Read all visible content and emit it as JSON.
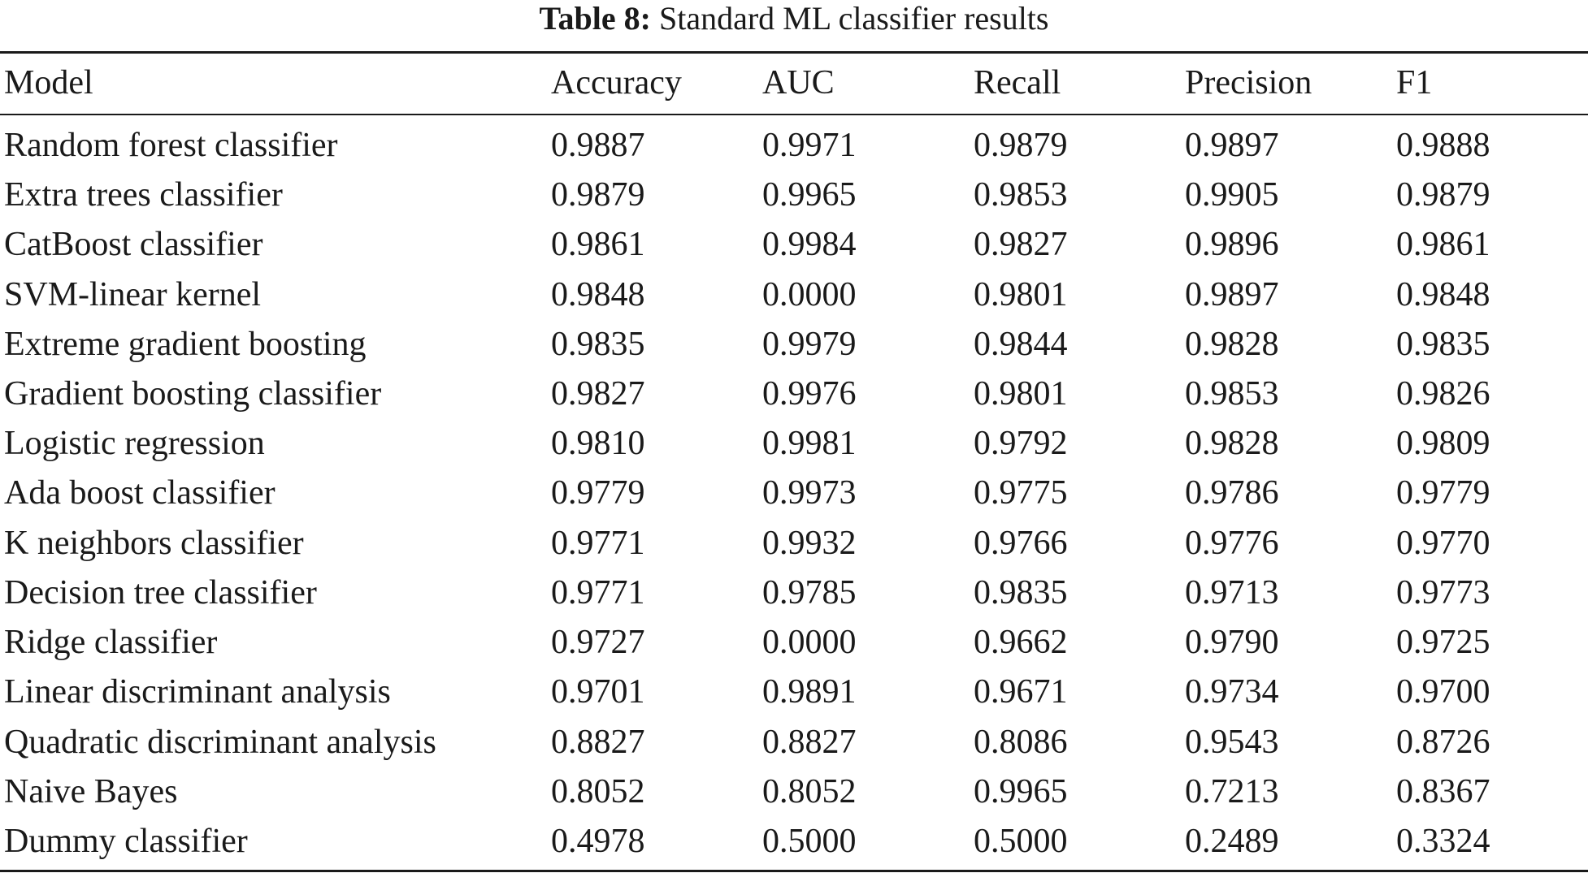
{
  "caption": {
    "label": "Table 8:",
    "title": "Standard ML classifier results"
  },
  "table": {
    "headers": [
      "Model",
      "Accuracy",
      "AUC",
      "Recall",
      "Precision",
      "F1"
    ],
    "rows": [
      [
        "Random forest classifier",
        "0.9887",
        "0.9971",
        "0.9879",
        "0.9897",
        "0.9888"
      ],
      [
        "Extra trees classifier",
        "0.9879",
        "0.9965",
        "0.9853",
        "0.9905",
        "0.9879"
      ],
      [
        "CatBoost classifier",
        "0.9861",
        "0.9984",
        "0.9827",
        "0.9896",
        "0.9861"
      ],
      [
        "SVM-linear kernel",
        "0.9848",
        "0.0000",
        "0.9801",
        "0.9897",
        "0.9848"
      ],
      [
        "Extreme gradient boosting",
        "0.9835",
        "0.9979",
        "0.9844",
        "0.9828",
        "0.9835"
      ],
      [
        "Gradient boosting classifier",
        "0.9827",
        "0.9976",
        "0.9801",
        "0.9853",
        "0.9826"
      ],
      [
        "Logistic regression",
        "0.9810",
        "0.9981",
        "0.9792",
        "0.9828",
        "0.9809"
      ],
      [
        "Ada boost classifier",
        "0.9779",
        "0.9973",
        "0.9775",
        "0.9786",
        "0.9779"
      ],
      [
        "K neighbors classifier",
        "0.9771",
        "0.9932",
        "0.9766",
        "0.9776",
        "0.9770"
      ],
      [
        "Decision tree classifier",
        "0.9771",
        "0.9785",
        "0.9835",
        "0.9713",
        "0.9773"
      ],
      [
        "Ridge classifier",
        "0.9727",
        "0.0000",
        "0.9662",
        "0.9790",
        "0.9725"
      ],
      [
        "Linear discriminant analysis",
        "0.9701",
        "0.9891",
        "0.9671",
        "0.9734",
        "0.9700"
      ],
      [
        "Quadratic discriminant analysis",
        "0.8827",
        "0.8827",
        "0.8086",
        "0.9543",
        "0.8726"
      ],
      [
        "Naive Bayes",
        "0.8052",
        "0.8052",
        "0.9965",
        "0.7213",
        "0.8367"
      ],
      [
        "Dummy classifier",
        "0.4978",
        "0.5000",
        "0.5000",
        "0.2489",
        "0.3324"
      ]
    ]
  }
}
